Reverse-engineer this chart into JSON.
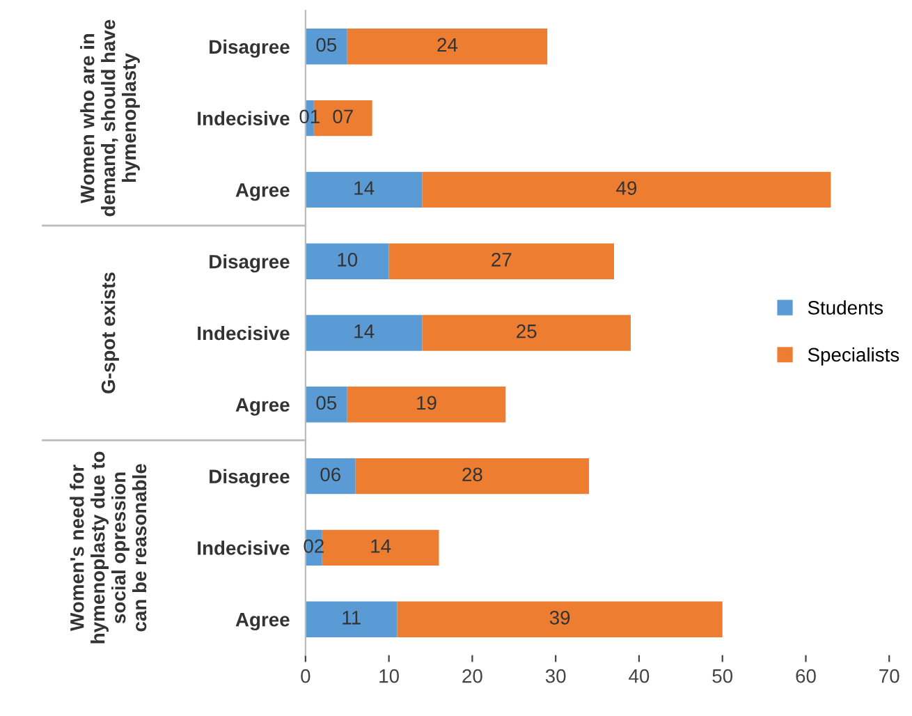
{
  "chart_data": {
    "type": "bar",
    "orientation": "horizontal",
    "stacked": true,
    "categories": [
      "Disagree",
      "Indecisive",
      "Agree",
      "Disagree",
      "Indecisive",
      "Agree",
      "Disagree",
      "Indecisive",
      "Agree"
    ],
    "series": [
      {
        "name": "Students",
        "color": "#5b9bd5",
        "values": [
          5,
          1,
          14,
          10,
          14,
          5,
          6,
          2,
          11
        ],
        "value_labels": [
          "05",
          "01",
          "14",
          "10",
          "14",
          "05",
          "06",
          "02",
          "11"
        ]
      },
      {
        "name": "Specialists",
        "color": "#ed7d31",
        "values": [
          24,
          7,
          49,
          27,
          25,
          19,
          28,
          14,
          39
        ],
        "value_labels": [
          "24",
          "07",
          "49",
          "27",
          "25",
          "19",
          "28",
          "14",
          "39"
        ]
      }
    ],
    "annotations": [
      "Women who are in\ndemand, should have\nhymenoplasty",
      "G-spot exists",
      "Women's need for\nhymenoplasty due to\nsocial opression\ncan be reasonable"
    ],
    "xlim": [
      0,
      70
    ],
    "xticks": [
      0,
      10,
      20,
      30,
      40,
      50,
      60,
      70
    ],
    "grid": false,
    "legend": "right"
  }
}
